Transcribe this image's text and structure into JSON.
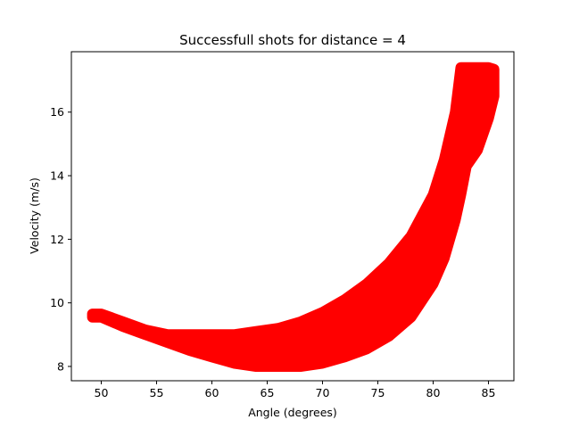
{
  "chart_data": {
    "type": "scatter",
    "title": "Successfull shots for distance = 4",
    "xlabel": "Angle (degrees)",
    "ylabel": "Velocity (m/s)",
    "xlim": [
      47.3,
      87.3
    ],
    "ylim": [
      7.55,
      17.9
    ],
    "xticks": [
      50,
      55,
      60,
      65,
      70,
      75,
      80,
      85
    ],
    "yticks": [
      8,
      10,
      12,
      14,
      16
    ],
    "grid": false,
    "legend": "none",
    "color": "#ff0000",
    "band": {
      "angle": [
        49.2,
        50,
        52,
        54,
        56,
        58,
        60,
        62,
        64,
        66,
        68,
        70,
        72,
        74,
        76,
        78,
        80,
        81,
        82,
        82.5,
        83,
        84,
        85,
        85.5
      ],
      "velocity_min": [
        9.55,
        9.55,
        9.25,
        9.0,
        8.75,
        8.5,
        8.3,
        8.1,
        8.0,
        8.0,
        8.0,
        8.1,
        8.3,
        8.55,
        8.95,
        9.55,
        10.6,
        11.4,
        12.6,
        13.4,
        14.3,
        14.8,
        15.8,
        16.5
      ],
      "velocity_max": [
        9.65,
        9.65,
        9.4,
        9.15,
        9.0,
        9.0,
        9.0,
        9.0,
        9.1,
        9.2,
        9.4,
        9.7,
        10.1,
        10.6,
        11.25,
        12.1,
        13.4,
        14.5,
        16.0,
        17.4,
        17.4,
        17.4,
        17.4,
        17.35
      ]
    }
  }
}
